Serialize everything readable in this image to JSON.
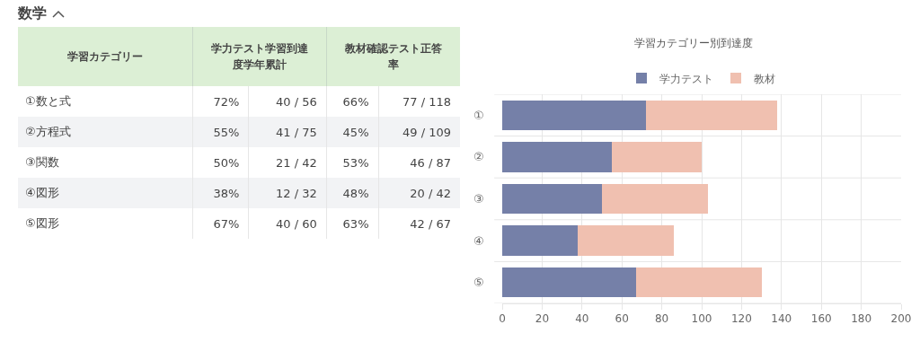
{
  "chart_data": [
    {
      "type": "other",
      "title": "数学",
      "categories": [
        "学習カテゴリー",
        "学力テスト学習到達度学年累計",
        "教材確認テスト正答率"
      ],
      "y_categories": [
        "①数と式",
        "②方程式",
        "③関数",
        "④図形",
        "⑤図形"
      ],
      "cell_labels": [
        [
          "72%",
          "40 / 56",
          "66%",
          "77 / 118"
        ],
        [
          "55%",
          "41 / 75",
          "45%",
          "49 / 109"
        ],
        [
          "50%",
          "21 / 42",
          "53%",
          "46 / 87"
        ],
        [
          "38%",
          "12 / 32",
          "48%",
          "20 / 42"
        ],
        [
          "67%",
          "40 / 60",
          "63%",
          "42 / 67"
        ]
      ]
    },
    {
      "type": "bar",
      "orientation": "horizontal",
      "stacked": true,
      "title": "学習カテゴリー別到達度",
      "categories": [
        "①",
        "②",
        "③",
        "④",
        "⑤"
      ],
      "series": [
        {
          "name": "学力テスト",
          "color": "#7580a8",
          "values": [
            72,
            55,
            50,
            38,
            67
          ]
        },
        {
          "name": "教材",
          "color": "#f0c0b0",
          "values": [
            66,
            45,
            53,
            48,
            63
          ]
        }
      ],
      "xlim": [
        0,
        200
      ],
      "xticks": [
        0,
        20,
        40,
        60,
        80,
        100,
        120,
        140,
        160,
        180,
        200
      ],
      "grid": true,
      "legend": "top"
    }
  ]
}
